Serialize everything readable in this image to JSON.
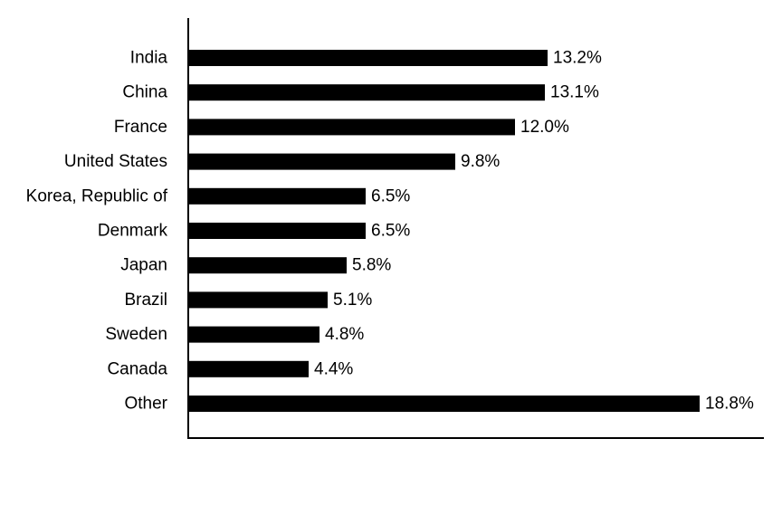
{
  "chart_data": {
    "type": "bar",
    "orientation": "horizontal",
    "categories": [
      "India",
      "China",
      "France",
      "United States",
      "Korea, Republic of",
      "Denmark",
      "Japan",
      "Brazil",
      "Sweden",
      "Canada",
      "Other"
    ],
    "values": [
      13.2,
      13.1,
      12.0,
      9.8,
      6.5,
      6.5,
      5.8,
      5.1,
      4.8,
      4.4,
      18.8
    ],
    "value_labels": [
      "13.2%",
      "13.1%",
      "12.0%",
      "9.8%",
      "6.5%",
      "6.5%",
      "5.8%",
      "5.1%",
      "4.8%",
      "4.4%",
      "18.8%"
    ],
    "title": "",
    "xlabel": "",
    "ylabel": "",
    "xlim": [
      0,
      21
    ],
    "grid": false,
    "legend": "none",
    "bar_color": "#000000",
    "axis_color": "#000000"
  }
}
